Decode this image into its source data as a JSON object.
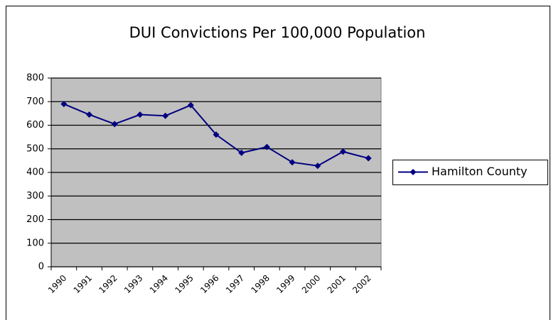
{
  "chart_data": {
    "type": "line",
    "title": "DUI Convictions Per 100,000 Population",
    "categories": [
      "1990",
      "1991",
      "1992",
      "1993",
      "1994",
      "1995",
      "1996",
      "1997",
      "1998",
      "1999",
      "2000",
      "2001",
      "2002"
    ],
    "series": [
      {
        "name": "Hamilton County",
        "color": "#000080",
        "values": [
          690,
          645,
          605,
          645,
          640,
          685,
          560,
          483,
          508,
          443,
          428,
          488,
          460
        ]
      }
    ],
    "ylim": [
      0,
      800
    ],
    "yticks": [
      0,
      100,
      200,
      300,
      400,
      500,
      600,
      700,
      800
    ],
    "grid": true,
    "legend": "right"
  }
}
